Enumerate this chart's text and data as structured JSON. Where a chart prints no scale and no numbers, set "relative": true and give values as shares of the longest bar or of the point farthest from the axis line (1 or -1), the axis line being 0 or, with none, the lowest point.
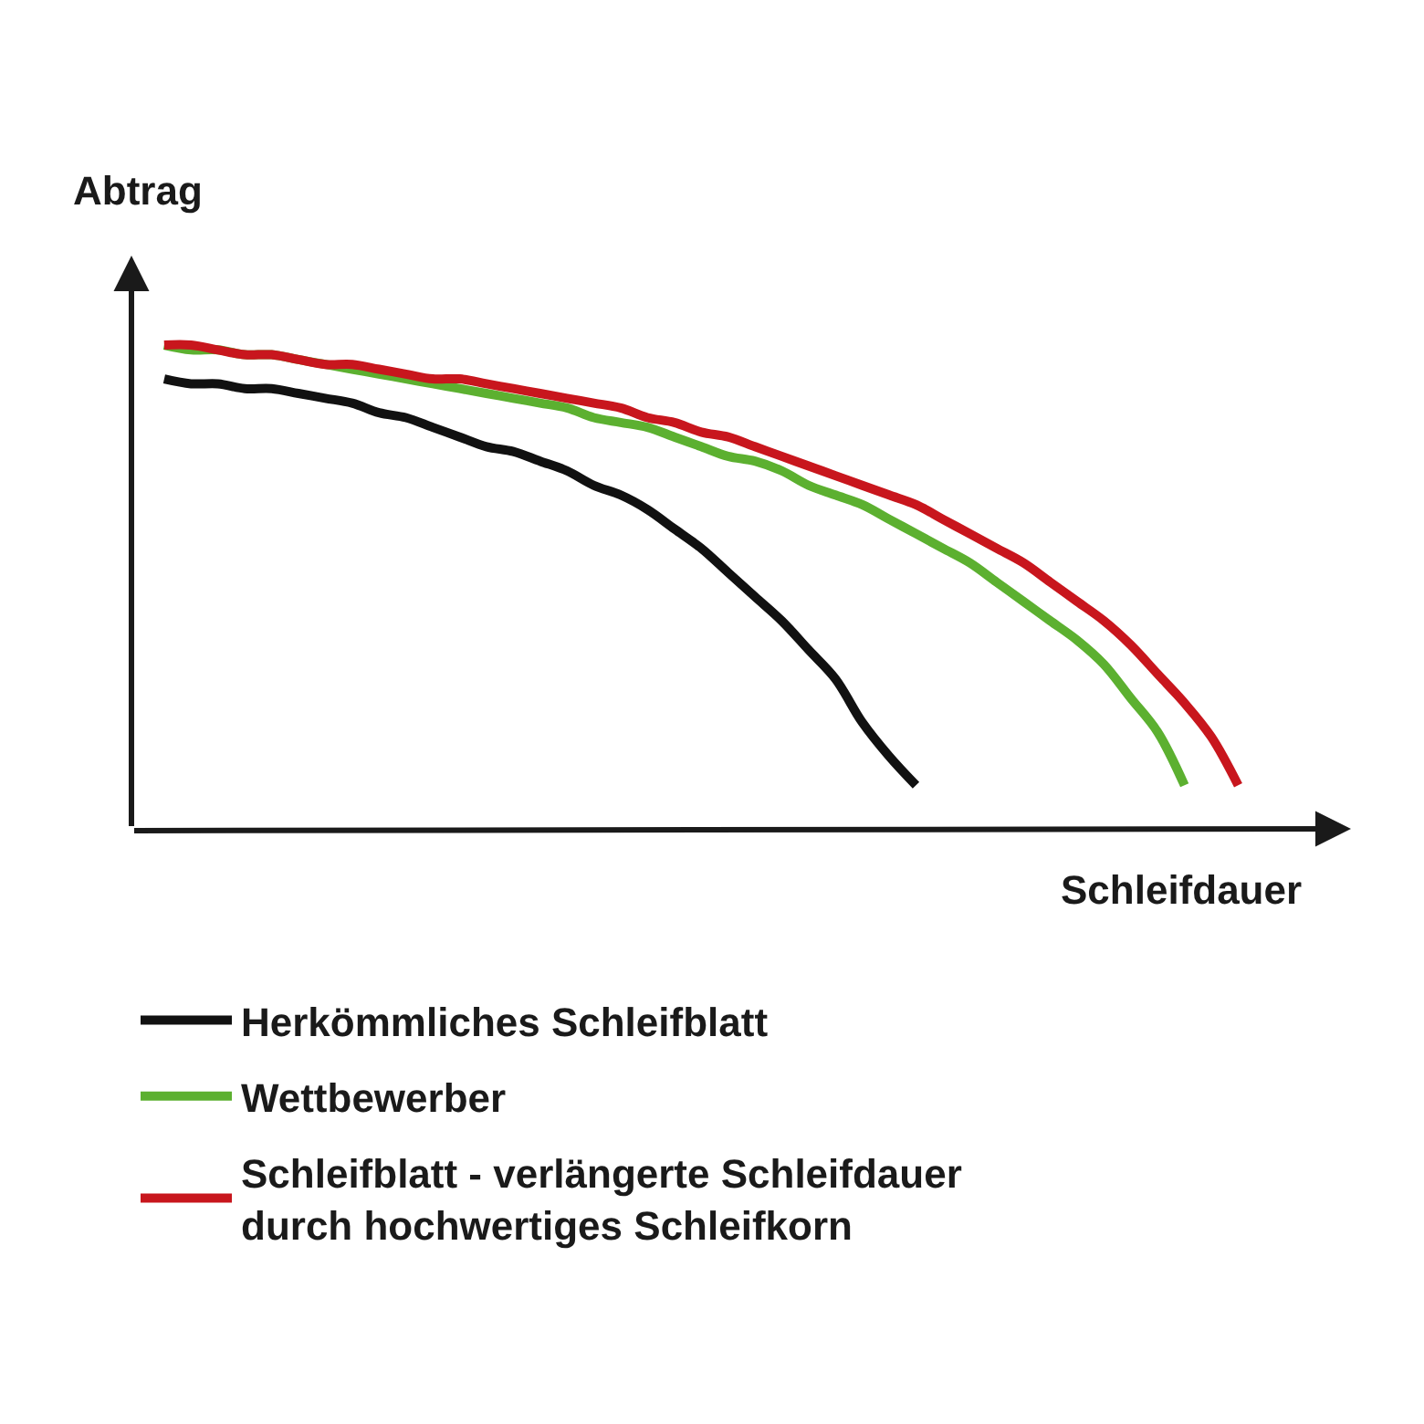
{
  "chart_data": {
    "type": "line",
    "relative": true,
    "xlabel": "Schleifdauer",
    "ylabel": "Abtrag",
    "grid": false,
    "legend": "bottom",
    "marker": "none",
    "line_style": "solid",
    "categories": [
      null,
      null,
      null,
      null,
      null,
      null,
      null,
      null,
      null,
      null,
      null,
      null,
      null,
      null,
      null,
      null,
      null,
      null,
      null,
      null,
      null,
      null,
      null,
      null,
      null,
      null,
      null,
      null,
      null,
      null,
      null,
      null,
      null,
      null,
      null,
      null,
      null,
      null,
      null,
      null,
      null
    ],
    "series": [
      {
        "name": "Herkömmliches Schleifblatt",
        "color": "#111111",
        "values": [
          0.93,
          0.92,
          0.92,
          0.91,
          0.91,
          0.9,
          0.89,
          0.88,
          0.86,
          0.85,
          0.83,
          0.81,
          0.79,
          0.78,
          0.76,
          0.74,
          0.71,
          0.69,
          0.66,
          0.62,
          0.58,
          0.53,
          0.48,
          0.43,
          0.37,
          0.31,
          0.22,
          0.15,
          0.09,
          null,
          null,
          null,
          null,
          null,
          null,
          null,
          null,
          null,
          null,
          null,
          null
        ]
      },
      {
        "name": "Wettbewerber",
        "color": "#5cb030",
        "values": [
          1.0,
          0.99,
          0.99,
          0.98,
          0.98,
          0.97,
          0.96,
          0.95,
          0.94,
          0.93,
          0.92,
          0.91,
          0.9,
          0.89,
          0.88,
          0.87,
          0.85,
          0.84,
          0.83,
          0.81,
          0.79,
          0.77,
          0.76,
          0.74,
          0.71,
          0.69,
          0.67,
          0.64,
          0.61,
          0.58,
          0.55,
          0.51,
          0.47,
          0.43,
          0.39,
          0.34,
          0.27,
          0.2,
          0.09,
          null,
          null
        ]
      },
      {
        "name": "Schleifblatt - verlängerte Schleifdauer durch hochwertiges Schleifkorn",
        "color": "#c8161d",
        "values": [
          1.0,
          1.0,
          0.99,
          0.98,
          0.98,
          0.97,
          0.96,
          0.96,
          0.95,
          0.94,
          0.93,
          0.93,
          0.92,
          0.91,
          0.9,
          0.89,
          0.88,
          0.87,
          0.85,
          0.84,
          0.82,
          0.81,
          0.79,
          0.77,
          0.75,
          0.73,
          0.71,
          0.69,
          0.67,
          0.64,
          0.61,
          0.58,
          0.55,
          0.51,
          0.47,
          0.43,
          0.38,
          0.32,
          0.26,
          0.19,
          0.09
        ]
      }
    ]
  }
}
